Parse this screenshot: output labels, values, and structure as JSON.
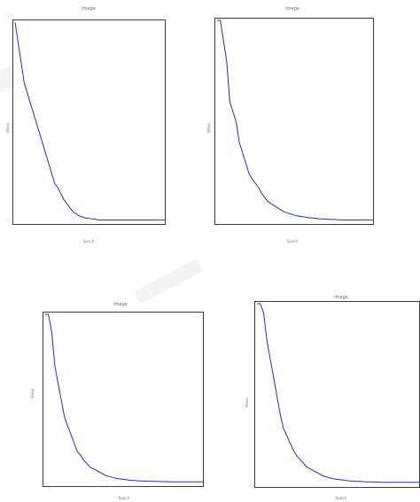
{
  "panels": [
    {
      "title": "Image",
      "xlabel": "Epoch",
      "ylabel": "Value"
    },
    {
      "title": "Image",
      "xlabel": "Epoch",
      "ylabel": "Value"
    },
    {
      "title": "Image",
      "xlabel": "Epoch",
      "ylabel": "Value"
    },
    {
      "title": "Image",
      "xlabel": "Epoch",
      "ylabel": "Value"
    }
  ],
  "colors": {
    "line": "#1d2fd6",
    "axis": "#3a3a3a",
    "label": "#777777"
  },
  "chart_data": [
    {
      "type": "line",
      "title": "Image",
      "xlabel": "Epoch",
      "ylabel": "Value",
      "grid": false,
      "series": [
        {
          "values": [
            10,
            9,
            8,
            7,
            6.5,
            6,
            5.5,
            5,
            4.5,
            4,
            3.5,
            3,
            2.5,
            2,
            1.8,
            1.5,
            1.2,
            1,
            0.8,
            0.6,
            0.5,
            0.4,
            0.35,
            0.3,
            0.3,
            0.25,
            0.25,
            0.2,
            0.2,
            0.2,
            0.2,
            0.2,
            0.2,
            0.2,
            0.2,
            0.2,
            0.2,
            0.2,
            0.2,
            0.2,
            0.2,
            0.2,
            0.2,
            0.2,
            0.2,
            0.2,
            0.2,
            0.2,
            0.2,
            0.2
          ]
        }
      ]
    },
    {
      "type": "line",
      "title": "Image",
      "xlabel": "Epoch",
      "ylabel": "Value",
      "grid": false,
      "series": [
        {
          "values": [
            10,
            10,
            9,
            8,
            6,
            5.5,
            5,
            4,
            3.5,
            3,
            2.5,
            2.2,
            2,
            1.8,
            1.5,
            1.3,
            1.1,
            1,
            0.9,
            0.8,
            0.7,
            0.6,
            0.55,
            0.5,
            0.45,
            0.4,
            0.38,
            0.35,
            0.33,
            0.3,
            0.3,
            0.28,
            0.26,
            0.25,
            0.24,
            0.23,
            0.22,
            0.22,
            0.21,
            0.2,
            0.2,
            0.2,
            0.2,
            0.2,
            0.2,
            0.2,
            0.2,
            0.2,
            0.2,
            0.2
          ]
        }
      ]
    },
    {
      "type": "line",
      "title": "Image",
      "xlabel": "Epoch",
      "ylabel": "Value",
      "grid": false,
      "series": [
        {
          "values": [
            10,
            10,
            9,
            7,
            6,
            5,
            4,
            3.5,
            3,
            2.5,
            2,
            1.8,
            1.5,
            1.3,
            1.1,
            1,
            0.9,
            0.8,
            0.7,
            0.6,
            0.55,
            0.5,
            0.45,
            0.42,
            0.4,
            0.38,
            0.35,
            0.33,
            0.32,
            0.3,
            0.3,
            0.29,
            0.28,
            0.28,
            0.27,
            0.27,
            0.26,
            0.26,
            0.26,
            0.25,
            0.25,
            0.25,
            0.25,
            0.25,
            0.25,
            0.25,
            0.25,
            0.25,
            0.25,
            0.25
          ]
        }
      ]
    },
    {
      "type": "line",
      "title": "Image",
      "xlabel": "Epoch",
      "ylabel": "Value",
      "grid": false,
      "series": [
        {
          "values": [
            10,
            10,
            9.5,
            8,
            7,
            6,
            5,
            4,
            3.2,
            2.8,
            2.4,
            2,
            1.7,
            1.5,
            1.3,
            1.1,
            1,
            0.9,
            0.8,
            0.7,
            0.6,
            0.55,
            0.5,
            0.45,
            0.42,
            0.4,
            0.38,
            0.35,
            0.33,
            0.32,
            0.3,
            0.3,
            0.29,
            0.28,
            0.28,
            0.27,
            0.27,
            0.26,
            0.26,
            0.25,
            0.25,
            0.25,
            0.25,
            0.25,
            0.25,
            0.25,
            0.25,
            0.25,
            0.25,
            0.25
          ]
        }
      ]
    }
  ]
}
